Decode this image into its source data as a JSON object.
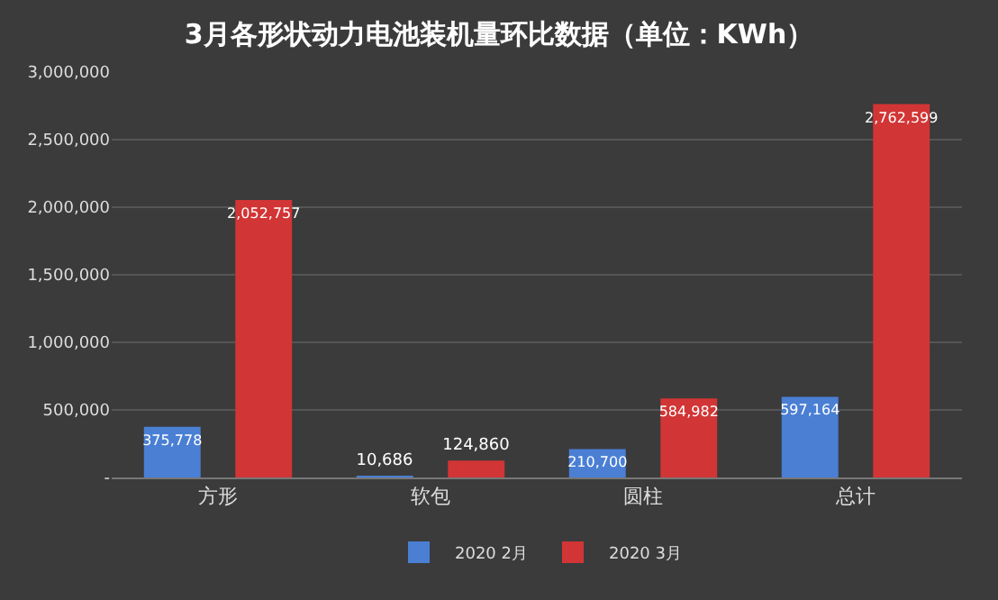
{
  "chart_data": {
    "type": "bar",
    "title": "3月各形状动力电池装机量环比数据（单位：KWh）",
    "categories": [
      "方形",
      "软包",
      "圆柱",
      "总计"
    ],
    "series": [
      {
        "name": "2020 2月",
        "color": "#4a7fd4",
        "values": [
          375778,
          10686,
          210700,
          597164
        ],
        "value_labels": [
          "375,778",
          "10,686",
          "210,700",
          "597,164"
        ]
      },
      {
        "name": "2020 3月",
        "color": "#d23535",
        "values": [
          2052757,
          124860,
          584982,
          2762599
        ],
        "value_labels": [
          "2,052,757",
          "124,860",
          "584,982",
          "2,762,599"
        ]
      }
    ],
    "ylim": [
      0,
      3000000
    ],
    "yticks": [
      {
        "value": 0,
        "label": "-"
      },
      {
        "value": 500000,
        "label": "500,000"
      },
      {
        "value": 1000000,
        "label": "1,000,000"
      },
      {
        "value": 1500000,
        "label": "1,500,000"
      },
      {
        "value": 2000000,
        "label": "2,000,000"
      },
      {
        "value": 2500000,
        "label": "2,500,000"
      },
      {
        "value": 3000000,
        "label": "3,000,000"
      }
    ],
    "grid": "y",
    "legend": "bottom"
  }
}
